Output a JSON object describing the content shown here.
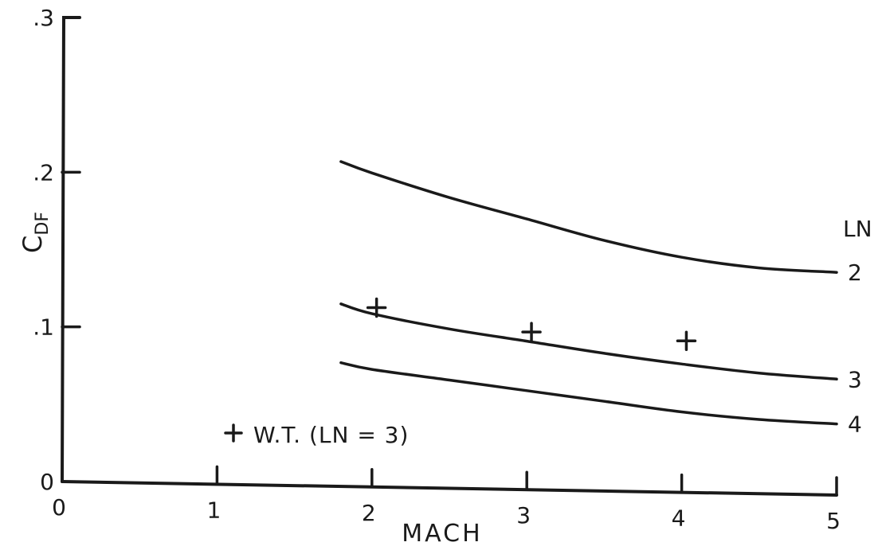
{
  "chart_data": {
    "type": "line",
    "title": "",
    "xlabel": "MACH",
    "ylabel_main": "C",
    "ylabel_sub": "DF",
    "xlim": [
      0,
      5
    ],
    "ylim": [
      0,
      0.3
    ],
    "x_ticks": [
      {
        "value": 0,
        "label": "0"
      },
      {
        "value": 1,
        "label": "1"
      },
      {
        "value": 2,
        "label": "2"
      },
      {
        "value": 3,
        "label": "3"
      },
      {
        "value": 4,
        "label": "4"
      },
      {
        "value": 5,
        "label": "5"
      }
    ],
    "y_ticks": [
      {
        "value": 0,
        "label": "0"
      },
      {
        "value": 0.1,
        "label": ".1"
      },
      {
        "value": 0.2,
        "label": ".2"
      },
      {
        "value": 0.3,
        "label": ".3"
      }
    ],
    "grid": false,
    "series_label_title": "LN",
    "series": [
      {
        "name": "2",
        "x": [
          1.8,
          2.0,
          2.5,
          3.0,
          3.5,
          4.0,
          4.5,
          5.0
        ],
        "y": [
          0.21,
          0.203,
          0.188,
          0.175,
          0.162,
          0.152,
          0.146,
          0.144
        ]
      },
      {
        "name": "3",
        "x": [
          1.8,
          2.0,
          2.5,
          3.0,
          3.5,
          4.0,
          4.5,
          5.0
        ],
        "y": [
          0.118,
          0.112,
          0.103,
          0.096,
          0.089,
          0.083,
          0.078,
          0.075
        ]
      },
      {
        "name": "4",
        "x": [
          1.8,
          2.0,
          2.5,
          3.0,
          3.5,
          4.0,
          4.5,
          5.0
        ],
        "y": [
          0.08,
          0.076,
          0.07,
          0.064,
          0.058,
          0.052,
          0.048,
          0.046
        ]
      }
    ],
    "markers": {
      "name": "W.T. (LN = 3)",
      "symbol": "+",
      "points": [
        {
          "x": 2.03,
          "y": 0.116
        },
        {
          "x": 3.03,
          "y": 0.102
        },
        {
          "x": 4.03,
          "y": 0.098
        }
      ]
    },
    "legend": {
      "text": "W.T. (LN = 3)",
      "placement": "bottom-left"
    }
  }
}
